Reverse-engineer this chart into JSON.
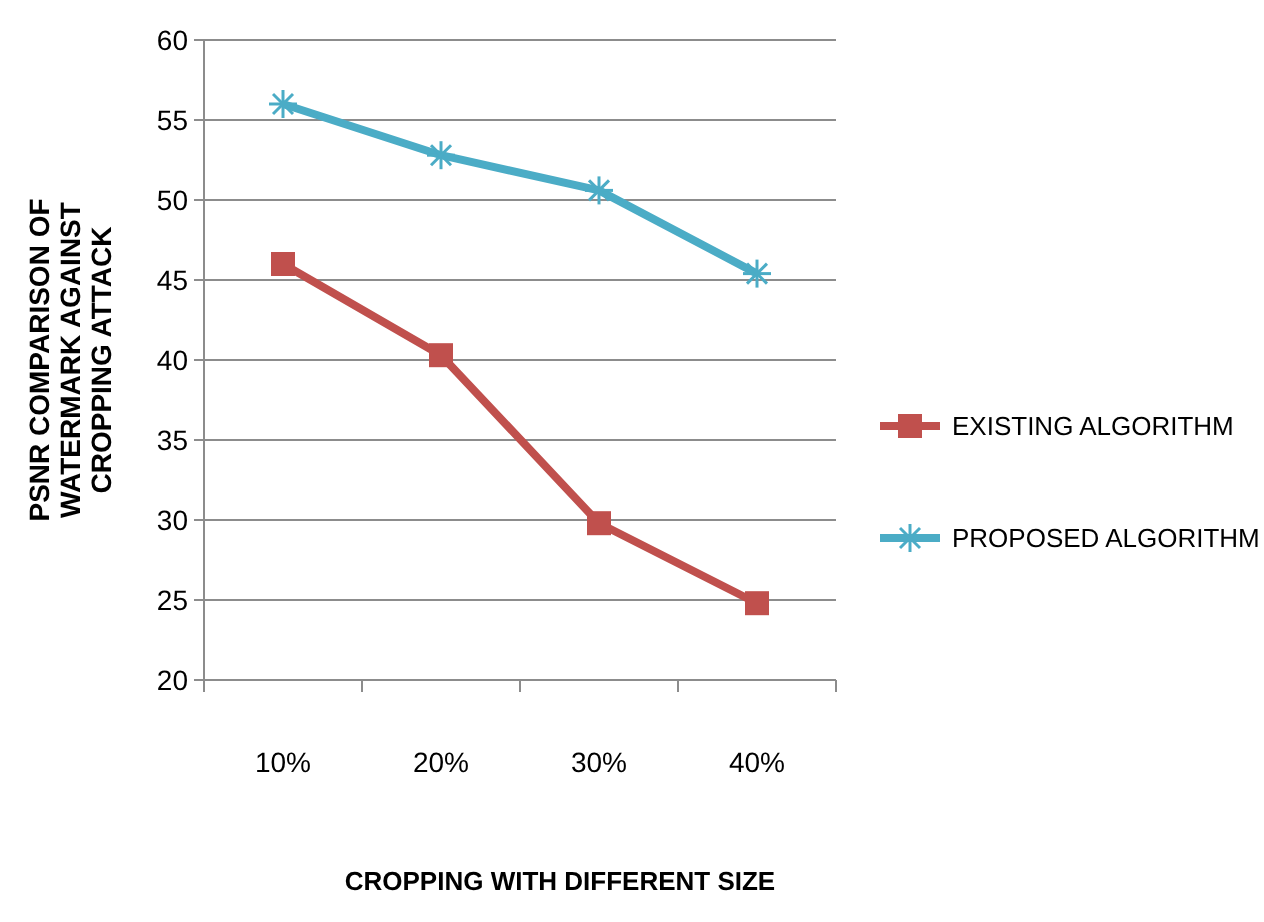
{
  "chart_data": {
    "type": "line",
    "xlabel": "CROPPING WITH DIFFERENT SIZE",
    "ylabel": "PSNR COMPARISON OF WATERMARK AGAINST CROPPING ATTACK",
    "categories": [
      "10%",
      "20%",
      "30%",
      "40%"
    ],
    "series": [
      {
        "name": "EXISTING ALGORITHM",
        "color": "#c0504d",
        "marker": "square",
        "values": [
          46,
          40.3,
          29.8,
          24.8
        ]
      },
      {
        "name": "PROPOSED ALGORITHM",
        "color": "#4bacc6",
        "marker": "cross",
        "values": [
          56,
          52.8,
          50.6,
          45.4
        ]
      }
    ],
    "ylim": [
      20,
      60
    ],
    "yticks": [
      20,
      25,
      30,
      35,
      40,
      45,
      50,
      55,
      60
    ],
    "grid": "y",
    "legend": "right"
  }
}
